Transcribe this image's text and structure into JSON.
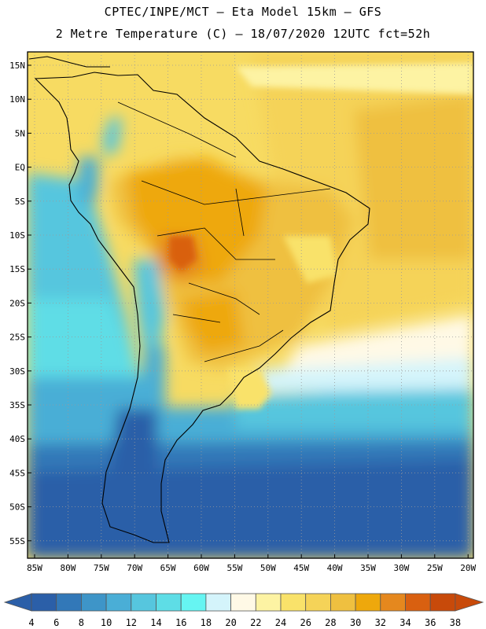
{
  "header": {
    "title_line1": "CPTEC/INPE/MCT –  Eta Model 15km – GFS",
    "title_line2": "2 Metre Temperature (C) – 18/07/2020 12UTC fct=52h"
  },
  "axes": {
    "lat_labels": [
      "15N",
      "10N",
      "5N",
      "EQ",
      "5S",
      "10S",
      "15S",
      "20S",
      "25S",
      "30S",
      "35S",
      "40S",
      "45S",
      "50S",
      "55S"
    ],
    "lon_labels": [
      "85W",
      "80W",
      "75W",
      "70W",
      "65W",
      "60W",
      "55W",
      "50W",
      "45W",
      "40W",
      "35W",
      "30W",
      "25W",
      "20W"
    ]
  },
  "colorbar": {
    "labels": [
      "4",
      "6",
      "8",
      "10",
      "12",
      "14",
      "16",
      "18",
      "20",
      "22",
      "24",
      "26",
      "28",
      "30",
      "32",
      "34",
      "36",
      "38"
    ],
    "colors": [
      "#2b5fa8",
      "#3278b8",
      "#3e95c8",
      "#4aaed6",
      "#56c6de",
      "#5edde6",
      "#66f5f2",
      "#d4f4fb",
      "#fff9e6",
      "#fdf3a3",
      "#f9e26a",
      "#f5d358",
      "#efc040",
      "#eea80c",
      "#e5881e",
      "#d96010",
      "#c84a0a"
    ],
    "low_arrow_color": "#2b5fa8",
    "high_arrow_color": "#c84a0a"
  }
}
